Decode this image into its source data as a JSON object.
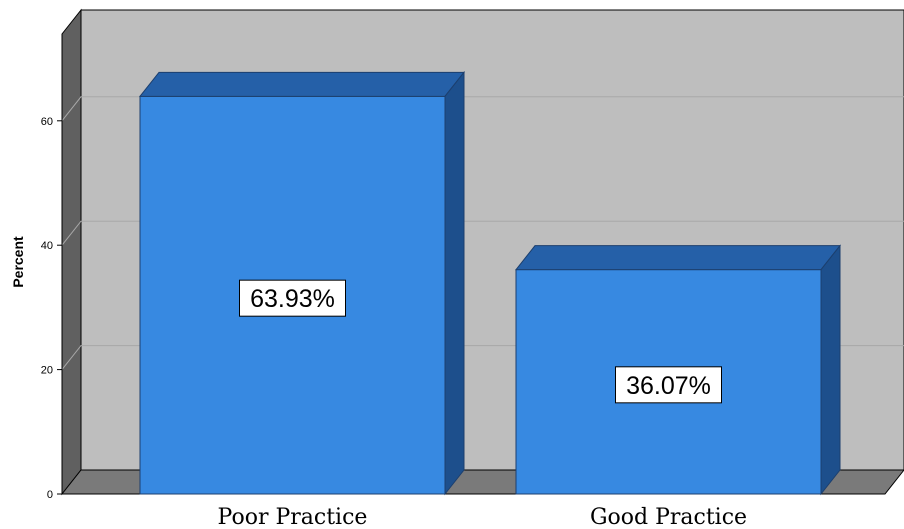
{
  "chart_data": {
    "type": "bar",
    "style": "3d",
    "categories": [
      "Poor Practice",
      "Good Practice"
    ],
    "values": [
      63.93,
      36.07
    ],
    "data_labels": [
      "63.93%",
      "36.07%"
    ],
    "ylabel": "Percent",
    "xlabel": "",
    "yticks": [
      "0",
      "20",
      "40",
      "60"
    ],
    "ylim": [
      0,
      74
    ],
    "grid": true,
    "legend": "none",
    "colors": {
      "bar_front": "#3789E1",
      "bar_top": "#2560A8",
      "bar_side": "#1D4F8C",
      "plot_back": "#BEBEBE",
      "plot_floor": "#7A7A7A",
      "plot_side": "#606060",
      "gridline": "#A8A8A8"
    }
  }
}
